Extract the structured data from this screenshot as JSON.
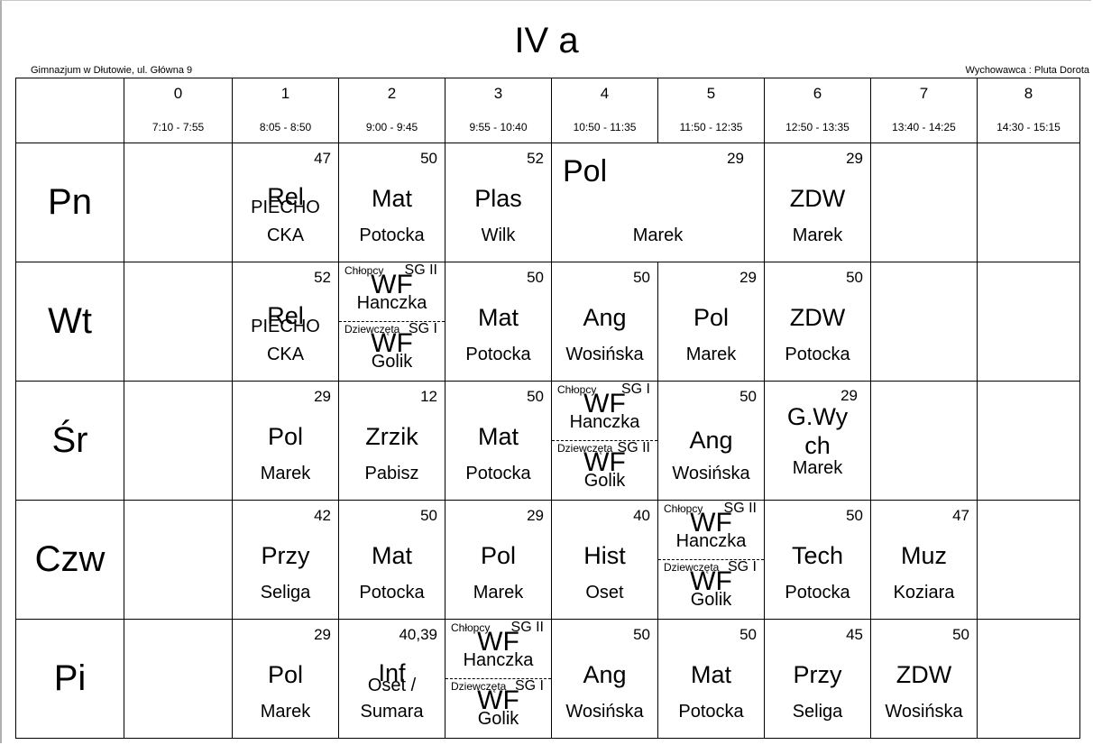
{
  "title": "IV a",
  "school": "Gimnazjum w Dłutowie, ul. Główna 9",
  "homeroom": "Wychowawca : Pluta Dorota",
  "periods": [
    {
      "num": "0",
      "time": "7:10 - 7:55"
    },
    {
      "num": "1",
      "time": "8:05 - 8:50"
    },
    {
      "num": "2",
      "time": "9:00 - 9:45"
    },
    {
      "num": "3",
      "time": "9:55 - 10:40"
    },
    {
      "num": "4",
      "time": "10:50 - 11:35"
    },
    {
      "num": "5",
      "time": "11:50 - 12:35"
    },
    {
      "num": "6",
      "time": "12:50 - 13:35"
    },
    {
      "num": "7",
      "time": "13:40 - 14:25"
    },
    {
      "num": "8",
      "time": "14:30 - 15:15"
    }
  ],
  "days": [
    "Pn",
    "Wt",
    "Śr",
    "Czw",
    "Pi"
  ],
  "lessons": {
    "pn": {
      "p1": {
        "room": "47",
        "subject": "Rel",
        "teacher_a": "PIECHO",
        "teacher_b": "CKA"
      },
      "p2": {
        "room": "50",
        "subject": "Mat",
        "teacher": "Potocka"
      },
      "p3": {
        "room": "52",
        "subject": "Plas",
        "teacher": "Wilk"
      },
      "p45": {
        "room": "29",
        "subject": "Pol",
        "teacher": "Marek"
      },
      "p6": {
        "room": "29",
        "subject": "ZDW",
        "teacher": "Marek"
      }
    },
    "wt": {
      "p1": {
        "room": "52",
        "subject": "Rel",
        "teacher_a": "PIECHO",
        "teacher_b": "CKA"
      },
      "p2": {
        "top": {
          "group": "Chłopcy",
          "sg": "SG II",
          "subject": "WF",
          "teacher": "Hanczka"
        },
        "bottom": {
          "group": "Dziewczęta",
          "sg": "SG I",
          "subject": "WF",
          "teacher": "Golik"
        }
      },
      "p3": {
        "room": "50",
        "subject": "Mat",
        "teacher": "Potocka"
      },
      "p4": {
        "room": "50",
        "subject": "Ang",
        "teacher": "Wosińska"
      },
      "p5": {
        "room": "29",
        "subject": "Pol",
        "teacher": "Marek"
      },
      "p6": {
        "room": "50",
        "subject": "ZDW",
        "teacher": "Potocka"
      }
    },
    "sr": {
      "p1": {
        "room": "29",
        "subject": "Pol",
        "teacher": "Marek"
      },
      "p2": {
        "room": "12",
        "subject": "Zrzik",
        "teacher": "Pabisz"
      },
      "p3": {
        "room": "50",
        "subject": "Mat",
        "teacher": "Potocka"
      },
      "p4": {
        "top": {
          "group": "Chłopcy",
          "sg": "SG I",
          "subject": "WF",
          "teacher": "Hanczka"
        },
        "bottom": {
          "group": "Dziewczęta",
          "sg": "SG II",
          "subject": "WF",
          "teacher": "Golik"
        }
      },
      "p5": {
        "room": "50",
        "subject": "Ang",
        "teacher": "Wosińska"
      },
      "p6": {
        "room": "29",
        "subject_a": "G.Wy",
        "subject_b": "ch",
        "teacher": "Marek"
      }
    },
    "czw": {
      "p1": {
        "room": "42",
        "subject": "Przy",
        "teacher": "Seliga"
      },
      "p2": {
        "room": "50",
        "subject": "Mat",
        "teacher": "Potocka"
      },
      "p3": {
        "room": "29",
        "subject": "Pol",
        "teacher": "Marek"
      },
      "p4": {
        "room": "40",
        "subject": "Hist",
        "teacher": "Oset"
      },
      "p5": {
        "top": {
          "group": "Chłopcy",
          "sg": "SG II",
          "subject": "WF",
          "teacher": "Hanczka"
        },
        "bottom": {
          "group": "Dziewczęta",
          "sg": "SG I",
          "subject": "WF",
          "teacher": "Golik"
        }
      },
      "p6": {
        "room": "50",
        "subject": "Tech",
        "teacher": "Potocka"
      },
      "p7": {
        "room": "47",
        "subject": "Muz",
        "teacher": "Koziara"
      }
    },
    "pi": {
      "p1": {
        "room": "29",
        "subject": "Pol",
        "teacher": "Marek"
      },
      "p2": {
        "room": "40,39",
        "subject": "Inf",
        "teacher_a": "Oset /",
        "teacher_b": "Sumara"
      },
      "p3": {
        "top": {
          "group": "Chłopcy",
          "sg": "SG II",
          "subject": "WF",
          "teacher": "Hanczka"
        },
        "bottom": {
          "group": "Dziewczęta",
          "sg": "SG I",
          "subject": "WF",
          "teacher": "Golik"
        }
      },
      "p4": {
        "room": "50",
        "subject": "Ang",
        "teacher": "Wosińska"
      },
      "p5": {
        "room": "50",
        "subject": "Mat",
        "teacher": "Potocka"
      },
      "p6": {
        "room": "45",
        "subject": "Przy",
        "teacher": "Seliga"
      },
      "p7": {
        "room": "50",
        "subject": "ZDW",
        "teacher": "Wosińska"
      }
    }
  }
}
